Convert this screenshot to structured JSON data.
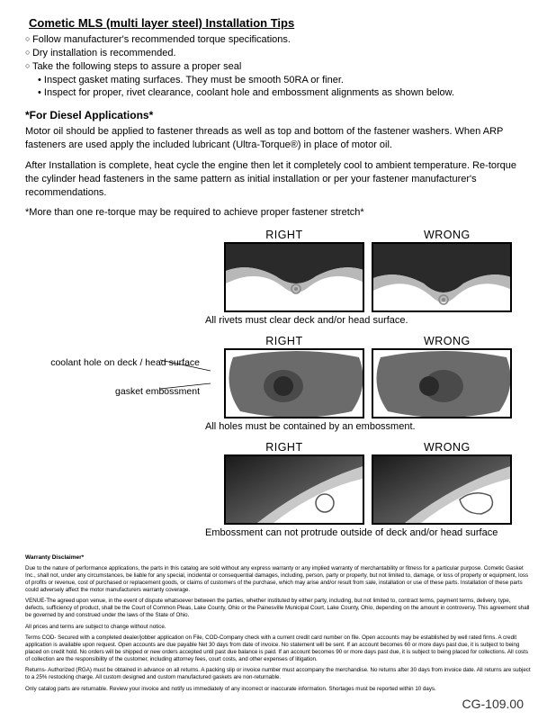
{
  "title": "Cometic MLS (multi layer steel) Installation Tips",
  "bullets": [
    {
      "level": 1,
      "text": "Follow manufacturer's recommended torque specifications."
    },
    {
      "level": 1,
      "text": "Dry installation is recommended."
    },
    {
      "level": 1,
      "text": "Take the following steps to assure a proper seal"
    },
    {
      "level": 2,
      "text": "Inspect gasket mating surfaces.  They must be smooth 50RA or finer."
    },
    {
      "level": 2,
      "text": "Inspect for proper, rivet clearance, coolant hole and embossment alignments as shown below."
    }
  ],
  "subhead": "*For Diesel Applications*",
  "para1": "Motor oil should be applied to fastener threads as well as top and bottom of the fastener washers. When ARP fasteners are used apply the included lubricant (Ultra-Torque®) in place of motor oil.",
  "para2": "After Installation is complete, heat cycle the engine then let it completely cool to ambient temperature. Re-torque the cylinder head fasteners in the same pattern as initial installation or per your fastener manufacturer's recommendations.",
  "para3": "*More than one re-torque may be required to achieve proper fastener stretch*",
  "labels": {
    "right": "RIGHT",
    "wrong": "WRONG"
  },
  "annotations": {
    "coolant": "coolant hole on deck / head surface",
    "emboss": "gasket embossment"
  },
  "captions": {
    "row1": "All rivets must clear deck and/or head surface.",
    "row2": "All holes must be contained by an embossment.",
    "row3": "Embossment can not protrude outside of deck and/or head surface"
  },
  "warranty_head": "Warranty Disclaimer*",
  "fp": [
    "Due to the nature of performance applications, the parts in this catalog are sold without any express warranty or any implied warranty of merchantability or fitness for a particular purpose. Cometic Gasket Inc., shall not, under any circumstances, be liable for any special, incidental or consequential damages, including, person, party or property, but not limited to, damage, or loss of property or equipment, loss of profits or revenue, cost of purchased or replacement goods, or claims of customers of the purchase, which may arise and/or result from sale, installation or use of these parts. Installation of these parts could adversely affect the motor manufacturers warranty coverage.",
    "VENUE-The agreed upon venue, in the event of dispute whatsoever between the parties, whether instituted by either party, including, but not limited to, contract terms, payment terms, delivery, type, defects, sufficiency of product, shall be the Court of Common Pleas, Lake County, Ohio or the Painesville Municipal Court, Lake County, Ohio, depending on the amount in controversy.\nThis agreement shall be governed by and construed under the laws of the State of Ohio.",
    "All prices and terms are subject to change without notice.",
    "Terms COD- Secured with a completed dealer/jobber application on File, COD-Company check with a current credit card number on file. Open accounts may be established by well rated firms. A credit application is available upon request. Open accounts are due payable Net 30 days from date of invoice. No statement will be sent. If an account becomes 60 or more days past due, it is subject to being placed on credit hold. No orders will be shipped or new orders accepted until past due balance is paid. If an account becomes 90 or more days past due, it is subject to being placed for collections. All costs of collection are the responsibility of the customer, including attorney fees, court costs, and other expenses of litigation.",
    "Returns- Authorized (RGA) must be obtained in advance on all returns. A packing slip or invoice number must accompany the merchandise. No returns after 30 days from invoice date. All returns are subject to a 25% restocking charge. All custom designed and custom manufactured gaskets are non-returnable.",
    "Only catalog parts are returnable.\nReview your invoice and notify us immediately of any incorrect or inaccurate information. Shortages must be reported within 10 days."
  ],
  "pagenum": "CG-109.00",
  "colors": {
    "gasket_dark": "#2a2a2a",
    "gasket_mid": "#6b6b6b",
    "gasket_light": "#b8b8b8",
    "rivet": "#d0d0d0"
  }
}
